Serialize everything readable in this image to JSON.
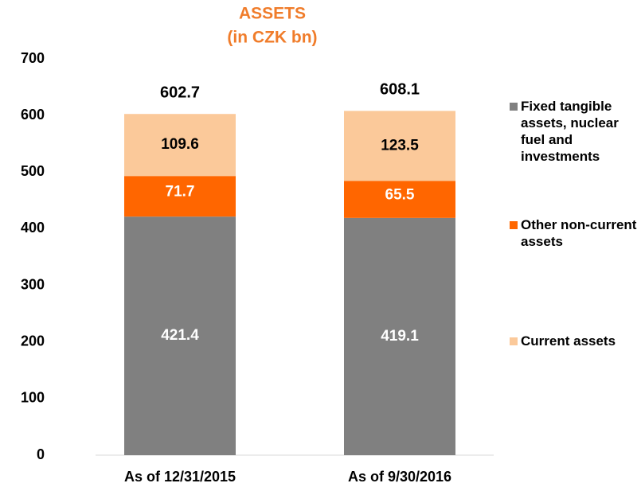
{
  "chart_data": {
    "type": "stacked_bar",
    "title": "ASSETS",
    "subtitle": "(in CZK bn)",
    "categories": [
      "As of 12/31/2015",
      "As of 9/30/2016"
    ],
    "series": [
      {
        "name": "Fixed tangible assets, nuclear fuel and investments",
        "color": "#808080",
        "values": [
          421.4,
          419.1
        ]
      },
      {
        "name": "Other non-current assets",
        "color": "#ff6600",
        "values": [
          71.7,
          65.5
        ]
      },
      {
        "name": "Current assets",
        "color": "#fbc99a",
        "values": [
          109.6,
          123.5
        ]
      }
    ],
    "totals": [
      602.7,
      608.1
    ],
    "ylim": [
      0,
      700
    ],
    "yticks": [
      0,
      100,
      200,
      300,
      400,
      500,
      600,
      700
    ],
    "title_color": "#f07c2a"
  }
}
